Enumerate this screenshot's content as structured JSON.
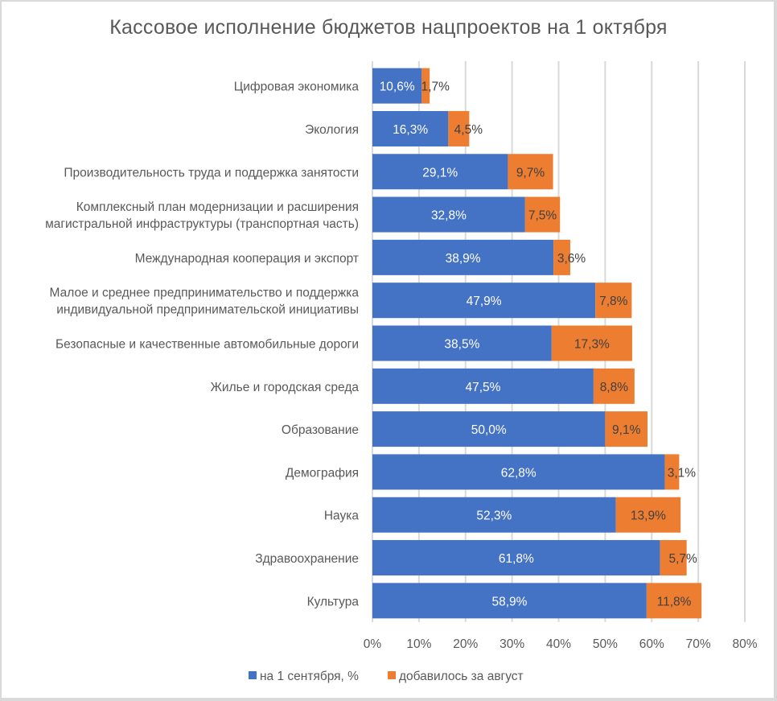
{
  "chart_data": {
    "type": "bar",
    "orientation": "horizontal",
    "stacked": true,
    "title": "Кассовое исполнение бюджетов нацпроектов на 1 октября",
    "xlabel": "",
    "ylabel": "",
    "xlim": [
      0,
      80
    ],
    "x_ticks": [
      "0%",
      "10%",
      "20%",
      "30%",
      "40%",
      "50%",
      "60%",
      "70%",
      "80%"
    ],
    "grid": true,
    "legend_position": "bottom",
    "categories": [
      [
        "Цифровая экономика"
      ],
      [
        "Экология"
      ],
      [
        "Производительность труда и поддержка занятости"
      ],
      [
        "Комплексный план модернизации и расширения",
        "магистральной инфраструктуры (транспортная часть)"
      ],
      [
        "Международная кооперация и экспорт"
      ],
      [
        "Малое и среднее предпринимательство и поддержка",
        "индивидуальной предпринимательской инициативы"
      ],
      [
        "Безопасные и качественные автомобильные дороги"
      ],
      [
        "Жилье и городская среда"
      ],
      [
        "Образование"
      ],
      [
        "Демография"
      ],
      [
        "Наука"
      ],
      [
        "Здравоохранение"
      ],
      [
        "Культура"
      ]
    ],
    "series": [
      {
        "name": "на 1 сентября, %",
        "color": "#4472c4",
        "values": [
          10.6,
          16.3,
          29.1,
          32.8,
          38.9,
          47.9,
          38.5,
          47.5,
          50.0,
          62.8,
          52.3,
          61.8,
          58.9
        ],
        "labels": [
          "10,6%",
          "16,3%",
          "29,1%",
          "32,8%",
          "38,9%",
          "47,9%",
          "38,5%",
          "47,5%",
          "50,0%",
          "62,8%",
          "52,3%",
          "61,8%",
          "58,9%"
        ]
      },
      {
        "name": "добавилось за август",
        "color": "#ed7d31",
        "values": [
          1.7,
          4.5,
          9.7,
          7.5,
          3.6,
          7.8,
          17.3,
          8.8,
          9.1,
          3.1,
          13.9,
          5.7,
          11.8
        ],
        "labels": [
          "1,7%",
          "4,5%",
          "9,7%",
          "7,5%",
          "3,6%",
          "7,8%",
          "17,3%",
          "8,8%",
          "9,1%",
          "3,1%",
          "13,9%",
          "5,7%",
          "11,8%"
        ]
      }
    ]
  }
}
